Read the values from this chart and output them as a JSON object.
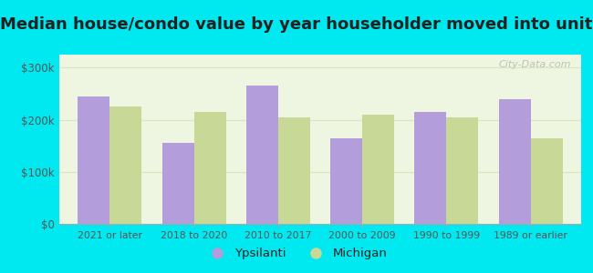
{
  "title": "Median house/condo value by year householder moved into unit",
  "categories": [
    "2021 or later",
    "2018 to 2020",
    "2010 to 2017",
    "2000 to 2009",
    "1990 to 1999",
    "1989 or earlier"
  ],
  "ypsilanti_values": [
    245000,
    155000,
    265000,
    165000,
    215000,
    240000
  ],
  "michigan_values": [
    225000,
    215000,
    205000,
    210000,
    205000,
    165000
  ],
  "ypsilanti_color": "#b39ddb",
  "michigan_color": "#c8d896",
  "background_outer": "#00e8f0",
  "background_inner": "#eef5e0",
  "title_fontsize": 13,
  "yticks": [
    0,
    100000,
    200000,
    300000
  ],
  "ytick_labels": [
    "$0",
    "$100k",
    "$200k",
    "$300k"
  ],
  "ylim": [
    0,
    325000
  ],
  "bar_width": 0.38,
  "legend_labels": [
    "Ypsilanti",
    "Michigan"
  ],
  "watermark_text": "City-Data.com",
  "title_color": "#222222",
  "tick_color": "#555555",
  "grid_color": "#d5e8c0"
}
